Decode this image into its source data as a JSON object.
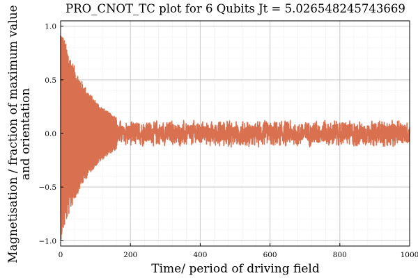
{
  "chart_data": {
    "type": "line",
    "title": "PRO_CNOT_TC plot for 6 Qubits Jt = 5.026548245743669",
    "xlabel": "Time/ period of driving field",
    "ylabel_lines": [
      "Magnetisation / fraction of maximum value",
      "and orientation"
    ],
    "xlim": [
      0,
      1000
    ],
    "ylim": [
      -1.05,
      1.05
    ],
    "x_ticks": [
      0,
      200,
      400,
      600,
      800,
      1000
    ],
    "x_tick_labels": [
      "0",
      "200",
      "400",
      "600",
      "800",
      "1000"
    ],
    "y_ticks": [
      -1.0,
      -0.5,
      0.0,
      0.5,
      1.0
    ],
    "y_tick_labels": [
      "−1.0",
      "−0.5",
      "0.0",
      "0.5",
      "1.0"
    ],
    "grid": true,
    "legend": "none",
    "series": [
      {
        "color": "#d9704f",
        "x": [
          0,
          1000
        ],
        "envelope": {
          "initial_amplitude": 1.0,
          "decay_until_x": 160,
          "steady_amplitude_range": [
            0.06,
            0.13
          ],
          "description_values": {
            "x_at_amplitude_0_5": 60,
            "x_at_amplitude_0_25": 120,
            "x_at_amplitude_0_12": 170
          }
        }
      }
    ]
  }
}
